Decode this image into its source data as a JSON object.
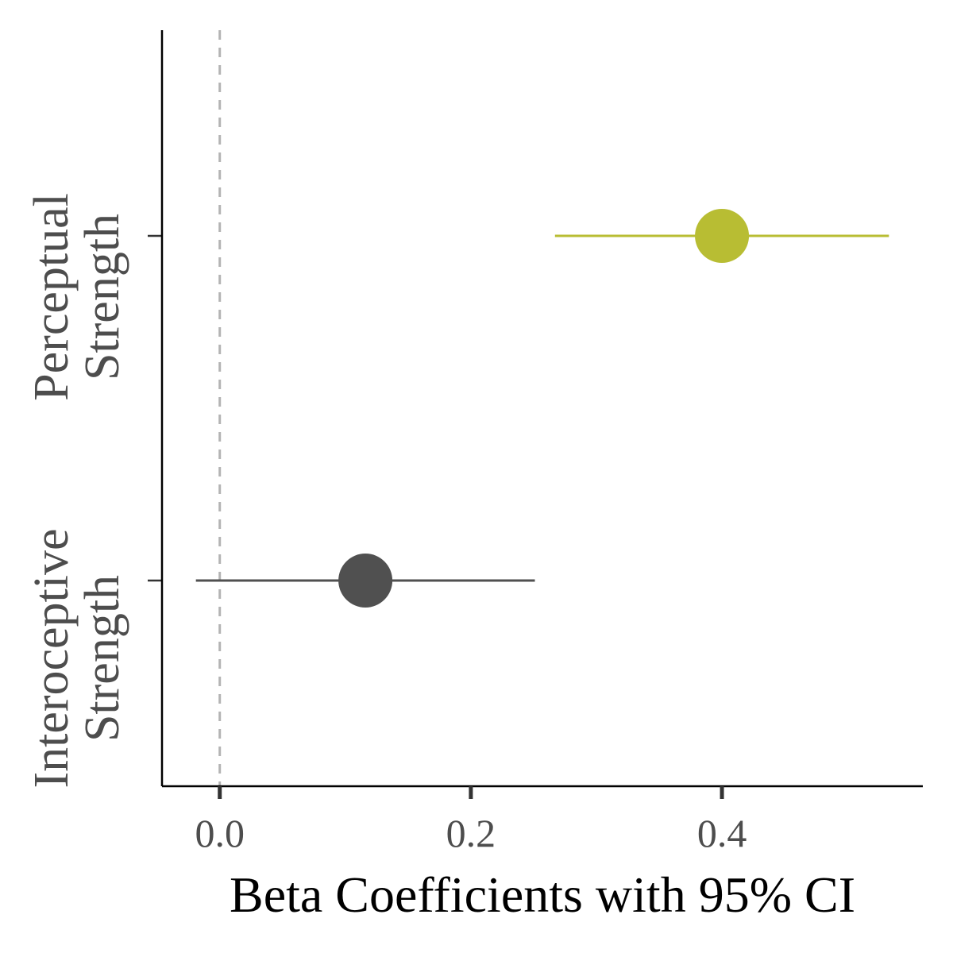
{
  "chart_data": {
    "type": "forest",
    "xlabel": "Beta Coefficients with 95% CI",
    "ylabel": "",
    "xlim": [
      -0.046,
      0.56
    ],
    "x_ticks": [
      0.0,
      0.2,
      0.4
    ],
    "x_tick_labels": [
      "0.0",
      "0.2",
      "0.4"
    ],
    "reference_line": {
      "x": 0,
      "style": "dashed",
      "color": "#b3b3b3"
    },
    "categories": [
      {
        "label_lines": [
          "Perceptual",
          "Strength"
        ],
        "estimate": 0.4,
        "ci_low": 0.267,
        "ci_high": 0.533,
        "color": "#b8bd33"
      },
      {
        "label_lines": [
          "Interoceptive",
          "Strength"
        ],
        "estimate": 0.116,
        "ci_low": -0.019,
        "ci_high": 0.251,
        "color": "#505050"
      }
    ],
    "grid": false,
    "legend": "none"
  }
}
